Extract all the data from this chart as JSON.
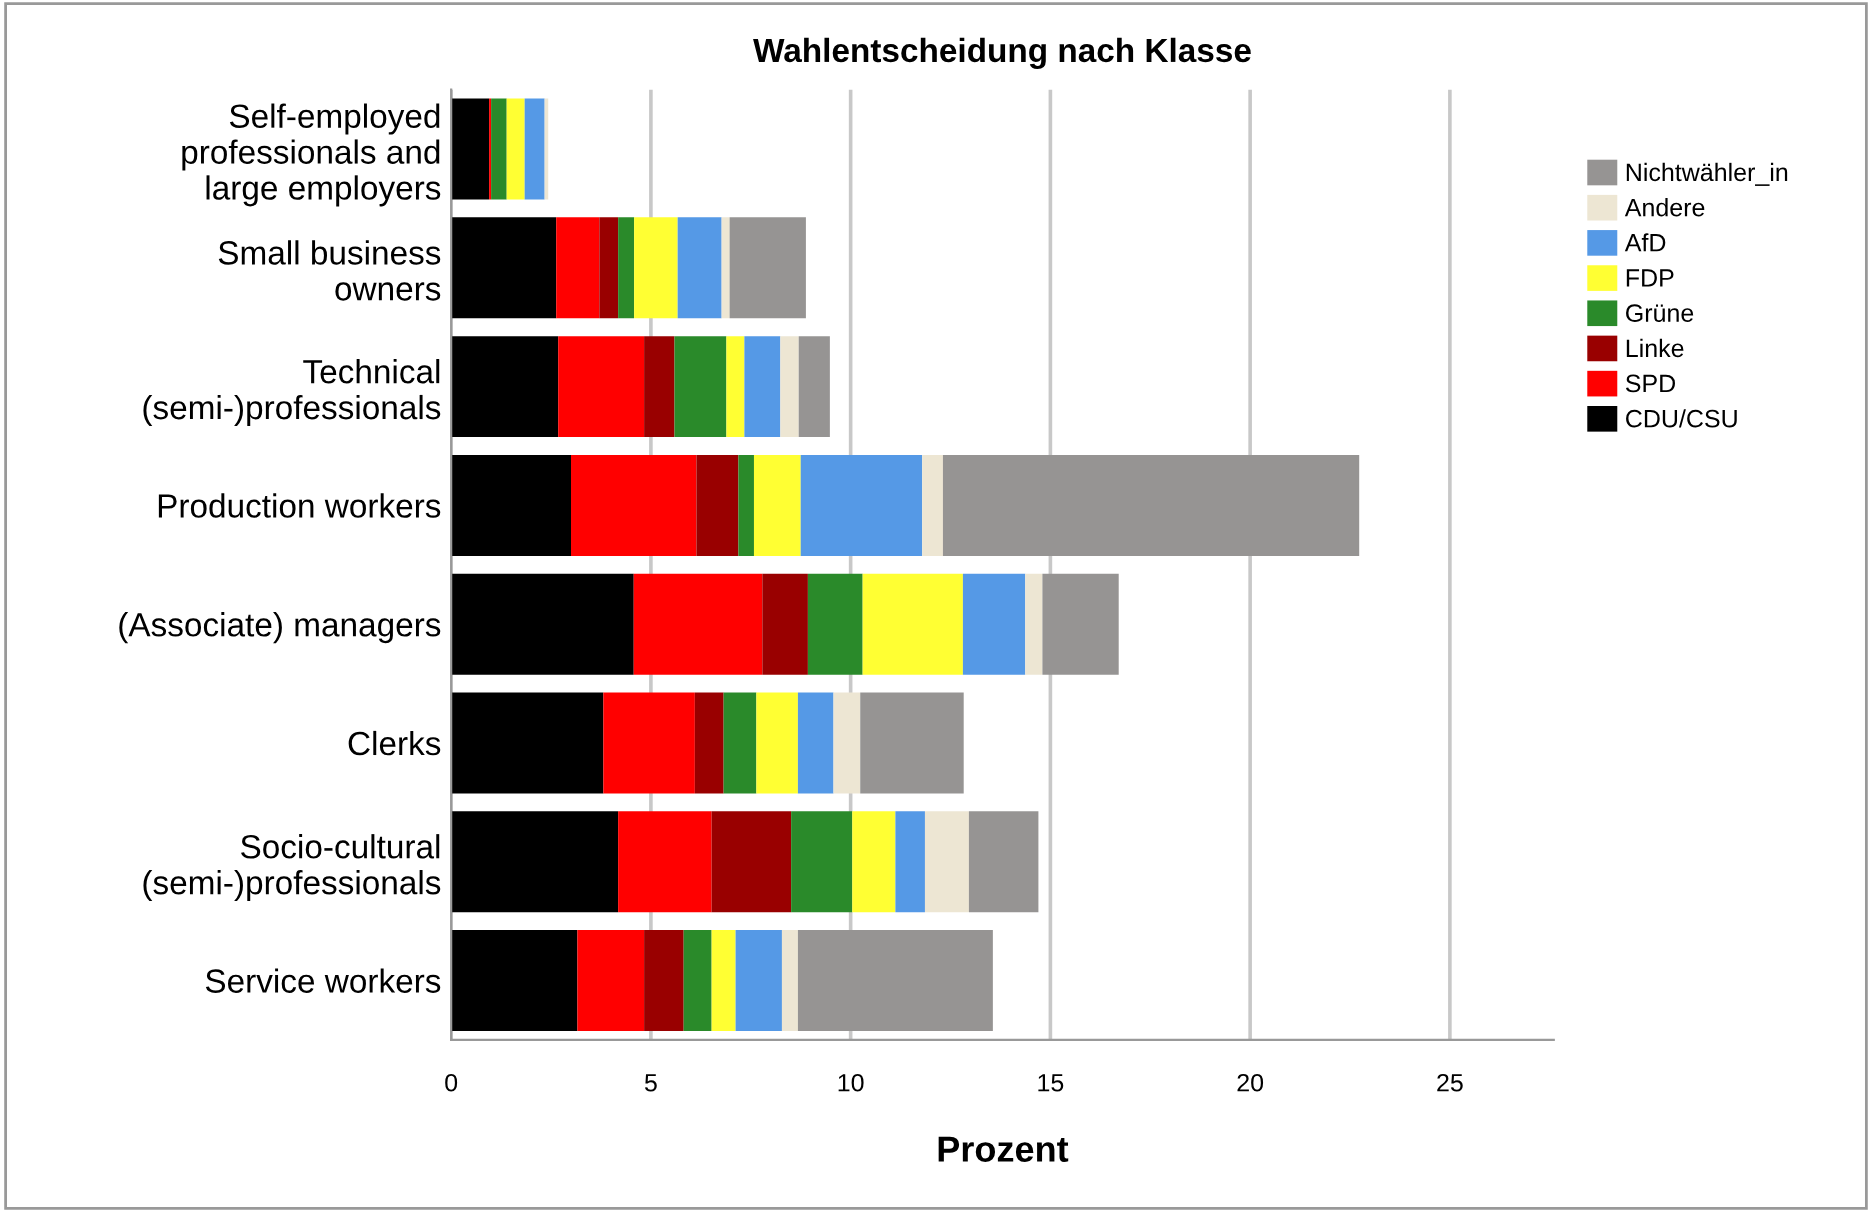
{
  "chart_data": {
    "type": "bar",
    "orientation": "horizontal",
    "stacked": true,
    "title": "Wahlentscheidung nach Klasse",
    "xlabel": "Prozent",
    "categories": [
      "Self-employed\nprofessionals and\nlarge employers",
      "Small business\nowners",
      "Technical\n(semi-)professionals",
      "Production workers",
      "(Associate) managers",
      "Clerks",
      "Socio-cultural\n(semi-)professionals",
      "Service workers"
    ],
    "series": [
      {
        "name": "CDU/CSU",
        "color": "#000000",
        "values": [
          0.95,
          2.63,
          2.68,
          3.0,
          4.57,
          3.81,
          4.18,
          3.16
        ]
      },
      {
        "name": "SPD",
        "color": "#ff0000",
        "values": [
          0.05,
          1.08,
          2.15,
          3.14,
          3.22,
          2.29,
          2.34,
          1.67
        ]
      },
      {
        "name": "Linke",
        "color": "#990000",
        "values": [
          0.0,
          0.47,
          0.76,
          1.05,
          1.14,
          0.72,
          1.99,
          0.99
        ]
      },
      {
        "name": "Grüne",
        "color": "#2a8a2a",
        "values": [
          0.39,
          0.4,
          1.3,
          0.39,
          1.37,
          0.82,
          1.53,
          0.7
        ]
      },
      {
        "name": "FDP",
        "color": "#ffff33",
        "values": [
          0.45,
          1.09,
          0.45,
          1.17,
          2.51,
          1.04,
          1.08,
          0.6
        ]
      },
      {
        "name": "AfD",
        "color": "#5599e6",
        "values": [
          0.5,
          1.1,
          0.9,
          3.04,
          1.56,
          0.89,
          0.74,
          1.16
        ]
      },
      {
        "name": "Andere",
        "color": "#ede6d3",
        "values": [
          0.09,
          0.2,
          0.46,
          0.52,
          0.43,
          0.67,
          1.1,
          0.4
        ]
      },
      {
        "name": "Nichtwähler_in",
        "color": "#969493",
        "values": [
          0.0,
          1.91,
          0.78,
          10.42,
          1.91,
          2.59,
          1.74,
          4.88
        ]
      }
    ],
    "xlim": [
      0,
      27.6
    ],
    "xticks": [
      0,
      5,
      10,
      15,
      20,
      25
    ],
    "grid": "x",
    "legend": "right"
  }
}
